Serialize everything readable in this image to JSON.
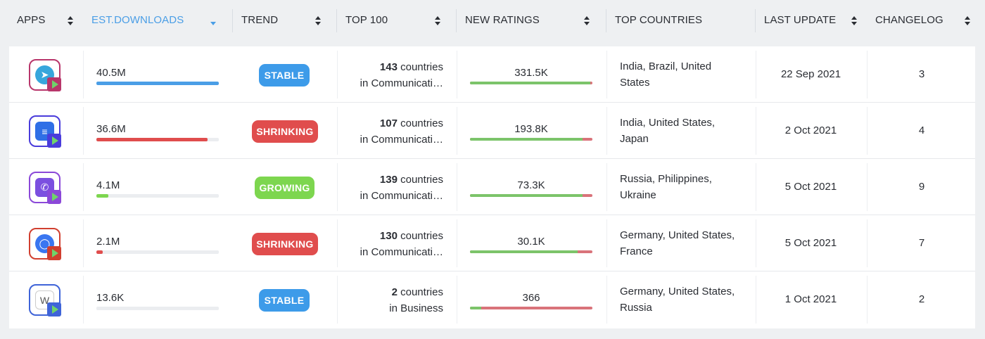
{
  "header": {
    "apps": "APPS",
    "est_downloads": "EST.DOWNLOADS",
    "trend": "TREND",
    "top100": "TOP 100",
    "new_ratings": "NEW RATINGS",
    "top_countries": "TOP COUNTRIES",
    "last_update": "LAST UPDATE",
    "changelog": "CHANGELOG"
  },
  "colors": {
    "accent": "#4a9ee6",
    "stable": "#3d9be9",
    "shrinking": "#e04d4d",
    "growing": "#7dd64f",
    "rating_positive": "#7cc46a",
    "rating_negative": "#d9737a"
  },
  "rows": [
    {
      "icon": "telegram-app-icon",
      "downloads": "40.5M",
      "downloads_fraction": 1.0,
      "downloads_color": "#4a9ee6",
      "trend": "STABLE",
      "top100_count": "143",
      "top100_suffix": " countries",
      "top100_category": "in Communicati…",
      "new_ratings": "331.5K",
      "ratings_positive_fraction": 0.98,
      "countries": "India, Brazil, United States",
      "last_update": "22 Sep 2021",
      "changelog": "3"
    },
    {
      "icon": "messages-app-icon",
      "downloads": "36.6M",
      "downloads_fraction": 0.91,
      "downloads_color": "#e04d4d",
      "trend": "SHRINKING",
      "top100_count": "107",
      "top100_suffix": " countries",
      "top100_category": "in Communicati…",
      "new_ratings": "193.8K",
      "ratings_positive_fraction": 0.92,
      "countries": "India, United States, Japan",
      "last_update": "2 Oct 2021",
      "changelog": "4"
    },
    {
      "icon": "viber-app-icon",
      "downloads": "4.1M",
      "downloads_fraction": 0.1,
      "downloads_color": "#7dd64f",
      "trend": "GROWING",
      "top100_count": "139",
      "top100_suffix": " countries",
      "top100_category": "in Communicati…",
      "new_ratings": "73.3K",
      "ratings_positive_fraction": 0.92,
      "countries": "Russia, Philippines, Ukraine",
      "last_update": "5 Oct 2021",
      "changelog": "9"
    },
    {
      "icon": "signal-app-icon",
      "downloads": "2.1M",
      "downloads_fraction": 0.05,
      "downloads_color": "#e04d4d",
      "trend": "SHRINKING",
      "top100_count": "130",
      "top100_suffix": " countries",
      "top100_category": "in Communicati…",
      "new_ratings": "30.1K",
      "ratings_positive_fraction": 0.88,
      "countries": "Germany, United States, France",
      "last_update": "5 Oct 2021",
      "changelog": "7"
    },
    {
      "icon": "business-app-icon",
      "downloads": "13.6K",
      "downloads_fraction": 0.0,
      "downloads_color": "#4a9ee6",
      "trend": "STABLE",
      "top100_count": "2",
      "top100_suffix": " countries",
      "top100_category": "in Business",
      "new_ratings": "366",
      "ratings_positive_fraction": 0.09,
      "countries": "Germany, United States, Russia",
      "last_update": "1 Oct 2021",
      "changelog": "2"
    }
  ]
}
